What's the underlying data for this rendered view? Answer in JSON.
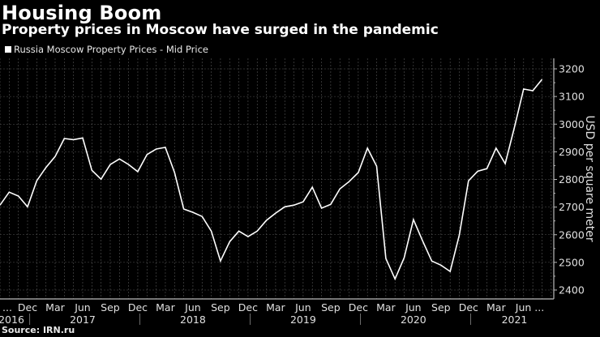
{
  "header": {
    "title": "Housing Boom",
    "subtitle": "Property prices in Moscow have surged in the pandemic"
  },
  "legend": {
    "label": "Russia Moscow Property Prices - Mid Price"
  },
  "footer": {
    "source": "Source: IRN.ru"
  },
  "colors": {
    "background": "#000000",
    "line": "#ffffff",
    "grid": "#555555",
    "axis": "#bbbbbb"
  },
  "chart_data": {
    "type": "line",
    "title": "Housing Boom",
    "subtitle": "Property prices in Moscow have surged in the pandemic",
    "xlabel": "",
    "ylabel": "USD per square meter",
    "ylim": [
      2400,
      3200
    ],
    "yticks": [
      2400,
      2500,
      2600,
      2700,
      2800,
      2900,
      3000,
      3100,
      3200
    ],
    "grid": true,
    "legend_position": "top-left",
    "x_tick_labels": [
      "...",
      "Dec",
      "Mar",
      "Jun",
      "Sep",
      "Dec",
      "Mar",
      "Jun",
      "Sep",
      "Dec",
      "Mar",
      "Jun",
      "Sep",
      "Dec",
      "Mar",
      "Jun",
      "Sep",
      "Dec",
      "Mar",
      "Jun ..."
    ],
    "x_year_labels": [
      {
        "label": "2016",
        "month_index": 0
      },
      {
        "label": "2017",
        "month_index": 9
      },
      {
        "label": "2018",
        "month_index": 21
      },
      {
        "label": "2019",
        "month_index": 33
      },
      {
        "label": "2020",
        "month_index": 45
      },
      {
        "label": "2021",
        "month_index": 56
      }
    ],
    "x": [
      "2016-09",
      "2016-10",
      "2016-11",
      "2016-12",
      "2017-01",
      "2017-02",
      "2017-03",
      "2017-04",
      "2017-05",
      "2017-06",
      "2017-07",
      "2017-08",
      "2017-09",
      "2017-10",
      "2017-11",
      "2017-12",
      "2018-01",
      "2018-02",
      "2018-03",
      "2018-04",
      "2018-05",
      "2018-06",
      "2018-07",
      "2018-08",
      "2018-09",
      "2018-10",
      "2018-11",
      "2018-12",
      "2019-01",
      "2019-02",
      "2019-03",
      "2019-04",
      "2019-05",
      "2019-06",
      "2019-07",
      "2019-08",
      "2019-09",
      "2019-10",
      "2019-11",
      "2019-12",
      "2020-01",
      "2020-02",
      "2020-03",
      "2020-04",
      "2020-05",
      "2020-06",
      "2020-07",
      "2020-08",
      "2020-09",
      "2020-10",
      "2020-11",
      "2020-12",
      "2021-01",
      "2021-02",
      "2021-03",
      "2021-04",
      "2021-05",
      "2021-06",
      "2021-07",
      "2021-08"
    ],
    "series": [
      {
        "name": "Russia Moscow Property Prices - Mid Price",
        "values": [
          2707,
          2754,
          2740,
          2701,
          2795,
          2843,
          2883,
          2948,
          2944,
          2950,
          2833,
          2801,
          2854,
          2874,
          2854,
          2828,
          2890,
          2910,
          2916,
          2825,
          2693,
          2681,
          2666,
          2613,
          2505,
          2575,
          2613,
          2593,
          2613,
          2652,
          2678,
          2701,
          2707,
          2719,
          2772,
          2696,
          2710,
          2766,
          2792,
          2825,
          2913,
          2848,
          2514,
          2440,
          2517,
          2655,
          2578,
          2505,
          2490,
          2467,
          2599,
          2795,
          2830,
          2839,
          2913,
          2857,
          2989,
          3127,
          3121,
          3162
        ]
      }
    ]
  }
}
